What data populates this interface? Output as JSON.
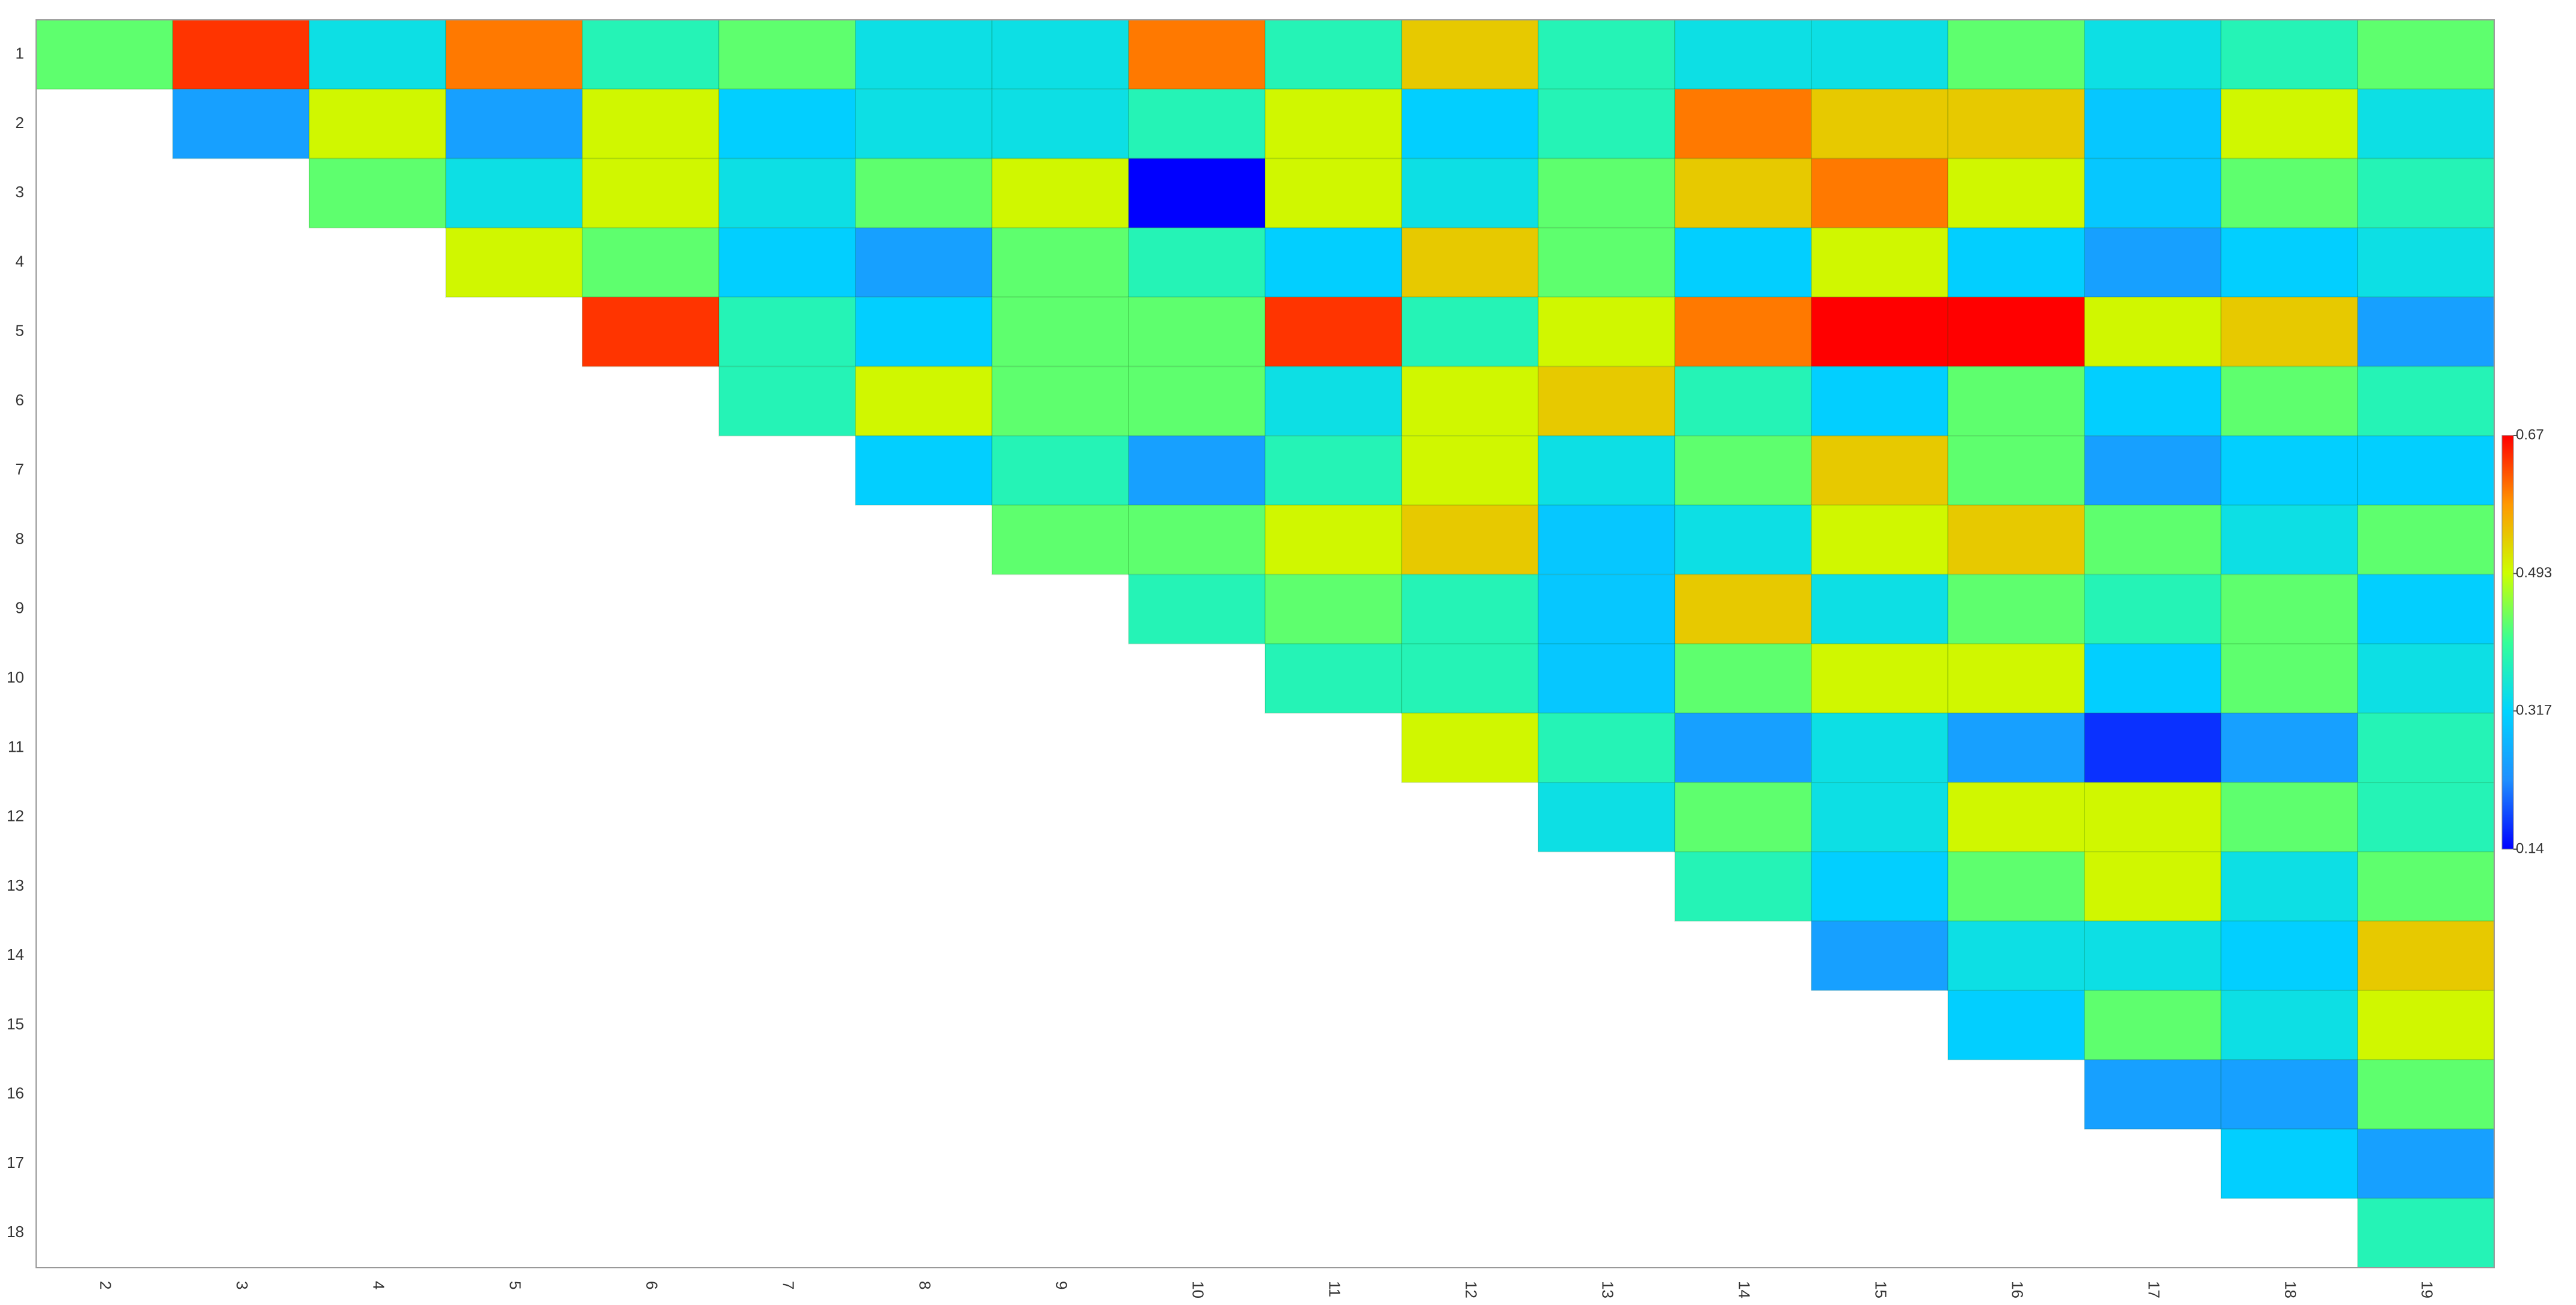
{
  "chart_data": {
    "type": "heatmap",
    "x": [
      "2",
      "3",
      "4",
      "5",
      "6",
      "7",
      "8",
      "9",
      "10",
      "11",
      "12",
      "13",
      "14",
      "15",
      "16",
      "17",
      "18",
      "19"
    ],
    "y": [
      "1",
      "2",
      "3",
      "4",
      "5",
      "6",
      "7",
      "8",
      "9",
      "10",
      "11",
      "12",
      "13",
      "14",
      "15",
      "16",
      "17",
      "18"
    ],
    "values": [
      [
        0.43,
        0.64,
        0.34,
        0.6,
        0.38,
        0.43,
        0.34,
        0.34,
        0.6,
        0.38,
        0.54,
        0.38,
        0.34,
        0.34,
        0.43,
        0.34,
        0.38,
        0.43
      ],
      [
        null,
        0.25,
        0.5,
        0.25,
        0.5,
        0.31,
        0.34,
        0.34,
        0.38,
        0.5,
        0.31,
        0.38,
        0.6,
        0.54,
        0.54,
        0.3,
        0.5,
        0.34
      ],
      [
        null,
        null,
        0.43,
        0.34,
        0.5,
        0.34,
        0.43,
        0.5,
        0.14,
        0.5,
        0.34,
        0.43,
        0.54,
        0.6,
        0.5,
        0.3,
        0.43,
        0.38
      ],
      [
        null,
        null,
        null,
        0.5,
        0.43,
        0.31,
        0.25,
        0.43,
        0.38,
        0.31,
        0.54,
        0.43,
        0.31,
        0.5,
        0.31,
        0.25,
        0.31,
        0.34
      ],
      [
        null,
        null,
        null,
        null,
        0.64,
        0.38,
        0.31,
        0.43,
        0.43,
        0.64,
        0.38,
        0.5,
        0.6,
        0.67,
        0.67,
        0.5,
        0.54,
        0.25
      ],
      [
        null,
        null,
        null,
        null,
        null,
        0.38,
        0.5,
        0.43,
        0.43,
        0.34,
        0.5,
        0.54,
        0.38,
        0.31,
        0.43,
        0.31,
        0.43,
        0.38
      ],
      [
        null,
        null,
        null,
        null,
        null,
        null,
        0.31,
        0.38,
        0.25,
        0.38,
        0.5,
        0.34,
        0.43,
        0.54,
        0.43,
        0.25,
        0.31,
        0.31
      ],
      [
        null,
        null,
        null,
        null,
        null,
        null,
        null,
        0.43,
        0.43,
        0.5,
        0.54,
        0.3,
        0.34,
        0.5,
        0.54,
        0.43,
        0.34,
        0.43
      ],
      [
        null,
        null,
        null,
        null,
        null,
        null,
        null,
        null,
        0.38,
        0.43,
        0.38,
        0.3,
        0.54,
        0.34,
        0.43,
        0.38,
        0.43,
        0.31
      ],
      [
        null,
        null,
        null,
        null,
        null,
        null,
        null,
        null,
        null,
        0.38,
        0.38,
        0.3,
        0.43,
        0.5,
        0.5,
        0.31,
        0.43,
        0.34
      ],
      [
        null,
        null,
        null,
        null,
        null,
        null,
        null,
        null,
        null,
        null,
        0.5,
        0.38,
        0.25,
        0.34,
        0.25,
        0.17,
        0.25,
        0.38
      ],
      [
        null,
        null,
        null,
        null,
        null,
        null,
        null,
        null,
        null,
        null,
        null,
        0.34,
        0.43,
        0.34,
        0.5,
        0.5,
        0.43,
        0.38
      ],
      [
        null,
        null,
        null,
        null,
        null,
        null,
        null,
        null,
        null,
        null,
        null,
        null,
        0.38,
        0.31,
        0.43,
        0.5,
        0.34,
        0.43
      ],
      [
        null,
        null,
        null,
        null,
        null,
        null,
        null,
        null,
        null,
        null,
        null,
        null,
        null,
        0.25,
        0.34,
        0.34,
        0.31,
        0.54
      ],
      [
        null,
        null,
        null,
        null,
        null,
        null,
        null,
        null,
        null,
        null,
        null,
        null,
        null,
        null,
        0.31,
        0.43,
        0.34,
        0.5
      ],
      [
        null,
        null,
        null,
        null,
        null,
        null,
        null,
        null,
        null,
        null,
        null,
        null,
        null,
        null,
        null,
        0.25,
        0.25,
        0.43
      ],
      [
        null,
        null,
        null,
        null,
        null,
        null,
        null,
        null,
        null,
        null,
        null,
        null,
        null,
        null,
        null,
        null,
        0.31,
        0.25
      ],
      [
        null,
        null,
        null,
        null,
        null,
        null,
        null,
        null,
        null,
        null,
        null,
        null,
        null,
        null,
        null,
        null,
        null,
        0.38
      ]
    ],
    "zlim": [
      0.14,
      0.67
    ],
    "zticks": [
      0.14,
      0.317,
      0.493,
      0.67
    ],
    "colorscale": [
      "#0000ff",
      "#1e8fff",
      "#00d4ff",
      "#33ff99",
      "#ccff00",
      "#ff9900",
      "#ff0000"
    ]
  }
}
